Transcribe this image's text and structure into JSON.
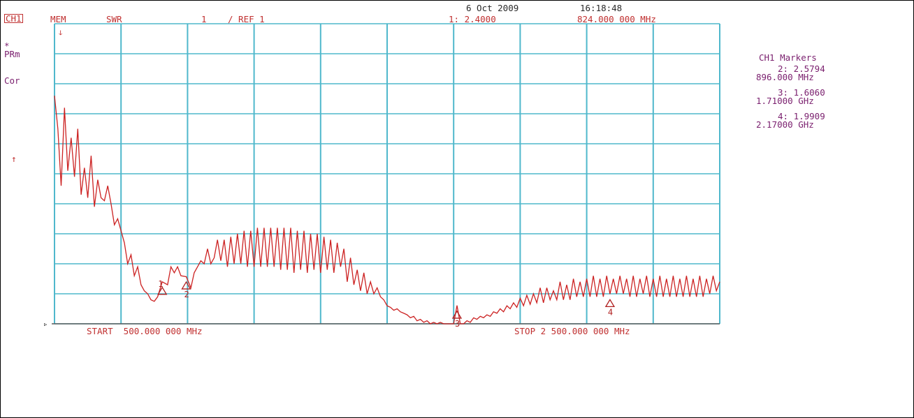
{
  "header": {
    "channel": "CH1",
    "mem": "MEM",
    "format": "SWR",
    "scale": "1",
    "ref": "/ REF 1",
    "date": "6 Oct 2009",
    "time": "16:18:48",
    "active_marker_value": "1: 2.4000",
    "active_marker_freq": "824.000 000 MHz"
  },
  "left_labels": {
    "star": "*",
    "prm": "PRm",
    "cor": "Cor",
    "ref_arrow": "↑",
    "ref_marker": "▹",
    "small_mark": "ↆ"
  },
  "footer": {
    "start": "START  500.000 000 MHz",
    "stop": "STOP 2 500.000 000 MHz"
  },
  "markers_panel": {
    "title": "CH1 Markers",
    "items": [
      {
        "value": "2: 2.5794",
        "freq": "896.000 MHz"
      },
      {
        "value": "3: 1.6060",
        "freq": "1.71000 GHz"
      },
      {
        "value": "4: 1.9909",
        "freq": "2.17000 GHz"
      }
    ]
  },
  "colors": {
    "grid": "#4fb8cc",
    "trace": "#cc2222",
    "marker": "#b02020",
    "text_red": "#c03030",
    "text_purple": "#7a1f6e"
  },
  "chart_data": {
    "type": "line",
    "title": "",
    "xlabel": "",
    "ylabel": "",
    "x_unit": "MHz",
    "xlim": [
      500,
      2500
    ],
    "ylim": [
      1,
      11
    ],
    "grid": true,
    "divisions": {
      "x": 10,
      "y": 10
    },
    "series": [
      {
        "points": [
          [
            500,
            8.6
          ],
          [
            510,
            7.5
          ],
          [
            520,
            5.6
          ],
          [
            530,
            8.2
          ],
          [
            540,
            6.1
          ],
          [
            550,
            7.2
          ],
          [
            560,
            5.9
          ],
          [
            570,
            7.5
          ],
          [
            580,
            5.3
          ],
          [
            590,
            6.2
          ],
          [
            600,
            5.2
          ],
          [
            610,
            6.6
          ],
          [
            620,
            4.9
          ],
          [
            630,
            5.8
          ],
          [
            640,
            5.2
          ],
          [
            650,
            5.1
          ],
          [
            660,
            5.6
          ],
          [
            670,
            5.0
          ],
          [
            680,
            4.3
          ],
          [
            690,
            4.5
          ],
          [
            700,
            4.1
          ],
          [
            710,
            3.7
          ],
          [
            720,
            3.0
          ],
          [
            730,
            3.3
          ],
          [
            740,
            2.6
          ],
          [
            750,
            2.9
          ],
          [
            760,
            2.3
          ],
          [
            770,
            2.1
          ],
          [
            780,
            2.0
          ],
          [
            790,
            1.8
          ],
          [
            800,
            1.75
          ],
          [
            810,
            1.9
          ],
          [
            824,
            2.4
          ],
          [
            840,
            2.3
          ],
          [
            850,
            2.9
          ],
          [
            860,
            2.7
          ],
          [
            870,
            2.9
          ],
          [
            880,
            2.6
          ],
          [
            896,
            2.57
          ],
          [
            910,
            2.2
          ],
          [
            920,
            2.7
          ],
          [
            930,
            2.9
          ],
          [
            940,
            3.1
          ],
          [
            950,
            3.0
          ],
          [
            960,
            3.5
          ],
          [
            970,
            3.0
          ],
          [
            980,
            3.2
          ],
          [
            990,
            3.8
          ],
          [
            1000,
            3.1
          ],
          [
            1010,
            3.8
          ],
          [
            1020,
            2.9
          ],
          [
            1030,
            3.9
          ],
          [
            1040,
            3.0
          ],
          [
            1050,
            4.0
          ],
          [
            1060,
            3.0
          ],
          [
            1070,
            4.1
          ],
          [
            1080,
            2.9
          ],
          [
            1090,
            4.1
          ],
          [
            1100,
            2.9
          ],
          [
            1110,
            4.2
          ],
          [
            1120,
            2.9
          ],
          [
            1130,
            4.2
          ],
          [
            1140,
            2.9
          ],
          [
            1150,
            4.2
          ],
          [
            1160,
            2.9
          ],
          [
            1170,
            4.2
          ],
          [
            1180,
            2.8
          ],
          [
            1190,
            4.2
          ],
          [
            1200,
            2.8
          ],
          [
            1210,
            4.2
          ],
          [
            1220,
            2.7
          ],
          [
            1230,
            4.1
          ],
          [
            1240,
            2.8
          ],
          [
            1250,
            4.1
          ],
          [
            1260,
            2.7
          ],
          [
            1270,
            4.0
          ],
          [
            1280,
            2.8
          ],
          [
            1290,
            4.0
          ],
          [
            1300,
            2.7
          ],
          [
            1310,
            3.9
          ],
          [
            1320,
            2.8
          ],
          [
            1330,
            3.8
          ],
          [
            1340,
            2.7
          ],
          [
            1350,
            3.7
          ],
          [
            1360,
            2.9
          ],
          [
            1370,
            3.5
          ],
          [
            1380,
            2.4
          ],
          [
            1390,
            3.2
          ],
          [
            1400,
            2.3
          ],
          [
            1410,
            2.8
          ],
          [
            1420,
            2.1
          ],
          [
            1430,
            2.7
          ],
          [
            1440,
            2.0
          ],
          [
            1450,
            2.4
          ],
          [
            1460,
            2.0
          ],
          [
            1470,
            2.2
          ],
          [
            1480,
            1.9
          ],
          [
            1490,
            1.8
          ],
          [
            1500,
            1.6
          ],
          [
            1510,
            1.55
          ],
          [
            1520,
            1.45
          ],
          [
            1530,
            1.5
          ],
          [
            1540,
            1.4
          ],
          [
            1550,
            1.35
          ],
          [
            1560,
            1.3
          ],
          [
            1570,
            1.2
          ],
          [
            1580,
            1.25
          ],
          [
            1590,
            1.1
          ],
          [
            1600,
            1.15
          ],
          [
            1610,
            1.05
          ],
          [
            1620,
            1.1
          ],
          [
            1630,
            1.0
          ],
          [
            1640,
            1.05
          ],
          [
            1650,
            1.0
          ],
          [
            1660,
            1.05
          ],
          [
            1670,
            0.95
          ],
          [
            1680,
            1.0
          ],
          [
            1690,
            0.95
          ],
          [
            1700,
            0.98
          ],
          [
            1710,
            1.61
          ],
          [
            1720,
            1.0
          ],
          [
            1730,
            0.95
          ],
          [
            1740,
            1.1
          ],
          [
            1750,
            1.05
          ],
          [
            1760,
            1.2
          ],
          [
            1770,
            1.15
          ],
          [
            1780,
            1.25
          ],
          [
            1790,
            1.2
          ],
          [
            1800,
            1.3
          ],
          [
            1810,
            1.25
          ],
          [
            1820,
            1.4
          ],
          [
            1830,
            1.35
          ],
          [
            1840,
            1.5
          ],
          [
            1850,
            1.4
          ],
          [
            1860,
            1.6
          ],
          [
            1870,
            1.5
          ],
          [
            1880,
            1.7
          ],
          [
            1890,
            1.55
          ],
          [
            1900,
            1.85
          ],
          [
            1910,
            1.6
          ],
          [
            1920,
            1.95
          ],
          [
            1930,
            1.65
          ],
          [
            1940,
            2.0
          ],
          [
            1950,
            1.7
          ],
          [
            1960,
            2.2
          ],
          [
            1970,
            1.7
          ],
          [
            1980,
            2.2
          ],
          [
            1990,
            1.8
          ],
          [
            2000,
            2.1
          ],
          [
            2010,
            1.8
          ],
          [
            2020,
            2.4
          ],
          [
            2030,
            1.8
          ],
          [
            2040,
            2.3
          ],
          [
            2050,
            1.8
          ],
          [
            2060,
            2.5
          ],
          [
            2070,
            1.9
          ],
          [
            2080,
            2.4
          ],
          [
            2090,
            1.9
          ],
          [
            2100,
            2.5
          ],
          [
            2110,
            1.9
          ],
          [
            2120,
            2.6
          ],
          [
            2130,
            1.9
          ],
          [
            2140,
            2.5
          ],
          [
            2150,
            1.9
          ],
          [
            2160,
            2.6
          ],
          [
            2170,
            1.99
          ],
          [
            2180,
            2.5
          ],
          [
            2190,
            2.0
          ],
          [
            2200,
            2.6
          ],
          [
            2210,
            2.0
          ],
          [
            2220,
            2.5
          ],
          [
            2230,
            1.9
          ],
          [
            2240,
            2.6
          ],
          [
            2250,
            1.9
          ],
          [
            2260,
            2.5
          ],
          [
            2270,
            2.0
          ],
          [
            2280,
            2.6
          ],
          [
            2290,
            1.9
          ],
          [
            2300,
            2.5
          ],
          [
            2310,
            1.9
          ],
          [
            2320,
            2.6
          ],
          [
            2330,
            1.9
          ],
          [
            2340,
            2.5
          ],
          [
            2350,
            1.9
          ],
          [
            2360,
            2.6
          ],
          [
            2370,
            1.9
          ],
          [
            2380,
            2.5
          ],
          [
            2390,
            1.9
          ],
          [
            2400,
            2.6
          ],
          [
            2410,
            1.9
          ],
          [
            2420,
            2.5
          ],
          [
            2430,
            1.9
          ],
          [
            2440,
            2.6
          ],
          [
            2450,
            1.9
          ],
          [
            2460,
            2.5
          ],
          [
            2470,
            2.0
          ],
          [
            2480,
            2.6
          ],
          [
            2490,
            2.1
          ],
          [
            2500,
            2.4
          ]
        ]
      }
    ],
    "markers": [
      {
        "label": "1",
        "x": 824,
        "y": 2.4
      },
      {
        "label": "2",
        "x": 896,
        "y": 2.5794
      },
      {
        "label": "3",
        "x": 1710,
        "y": 1.606
      },
      {
        "label": "4",
        "x": 2170,
        "y": 1.9909
      }
    ]
  }
}
